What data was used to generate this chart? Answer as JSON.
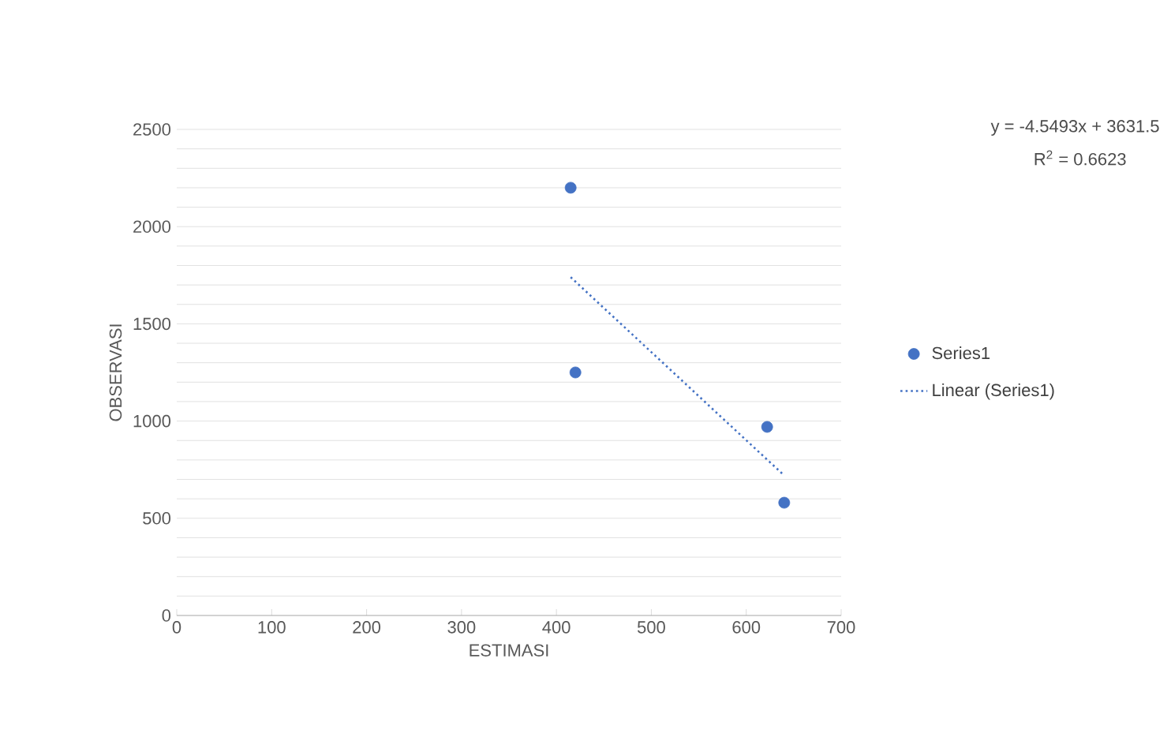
{
  "chart_data": {
    "type": "scatter",
    "xlabel": "ESTIMASI",
    "ylabel": "OBSERVASI",
    "x": [
      415,
      420,
      622,
      640
    ],
    "series": [
      {
        "name": "Series1",
        "color": "#4472c4",
        "values": [
          2200,
          1250,
          970,
          580
        ],
        "marker": "circle"
      },
      {
        "name": "Linear (Series1)",
        "type": "line",
        "color": "#4472c4",
        "x": [
          415,
          640
        ],
        "values": [
          1740,
          720
        ],
        "line_style": "dotted",
        "marker": "none"
      }
    ],
    "xlim": [
      0,
      700
    ],
    "xticks": [
      0,
      100,
      200,
      300,
      400,
      500,
      600,
      700
    ],
    "ylim": [
      0,
      2500
    ],
    "yticks": [
      0,
      {
        "value": 100,
        "label": null
      },
      {
        "value": 200,
        "label": null
      },
      {
        "value": 300,
        "label": null
      },
      {
        "value": 400,
        "label": null
      },
      500,
      {
        "value": 600,
        "label": null
      },
      {
        "value": 700,
        "label": null
      },
      {
        "value": 800,
        "label": null
      },
      {
        "value": 900,
        "label": null
      },
      1000,
      {
        "value": 1100,
        "label": null
      },
      {
        "value": 1200,
        "label": null
      },
      {
        "value": 1300,
        "label": null
      },
      {
        "value": 1400,
        "label": null
      },
      1500,
      {
        "value": 1600,
        "label": null
      },
      {
        "value": 1700,
        "label": null
      },
      {
        "value": 1800,
        "label": null
      },
      {
        "value": 1900,
        "label": null
      },
      2000,
      {
        "value": 2100,
        "label": null
      },
      {
        "value": 2200,
        "label": null
      },
      {
        "value": 2300,
        "label": null
      },
      {
        "value": 2400,
        "label": null
      },
      2500
    ],
    "grid": "y",
    "legend": "right",
    "annotations": [
      "y = -4.5493x + 3631.5",
      "R$^{2}$ = 0.6623"
    ]
  }
}
